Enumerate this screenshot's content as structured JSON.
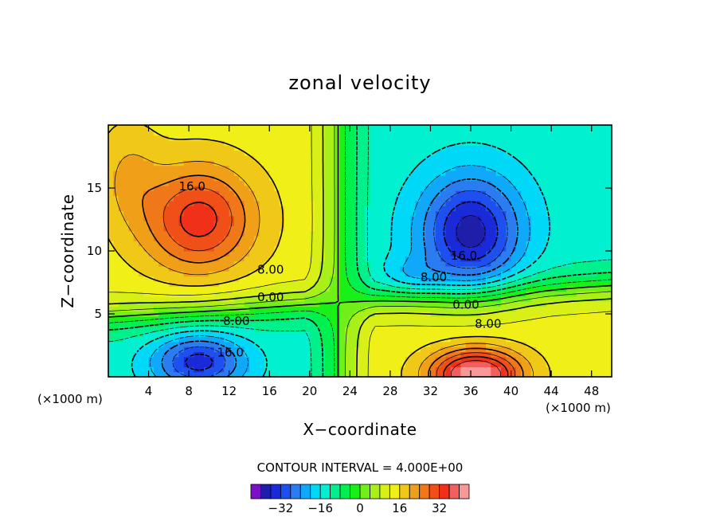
{
  "chart_data": {
    "type": "contour",
    "title": "zonal velocity",
    "xlabel": "X−coordinate",
    "ylabel": "Z−coordinate",
    "x_unit_left": "(×1000 m)",
    "x_unit_right": "(×1000 m)",
    "xlim": [
      0,
      50
    ],
    "ylim": [
      0,
      20
    ],
    "x_ticks": [
      4,
      8,
      12,
      16,
      20,
      24,
      28,
      32,
      36,
      40,
      44,
      48
    ],
    "y_ticks": [
      5,
      10,
      15
    ],
    "contour_interval_label": "CONTOUR INTERVAL = 4.000E+00",
    "contour_interval": 4,
    "negative_contours_dashed": true,
    "contour_labels": [
      {
        "text": "16.0",
        "x": 7.0,
        "y": 14.8
      },
      {
        "text": "8.00",
        "x": 14.8,
        "y": 8.2
      },
      {
        "text": "0.00",
        "x": 14.8,
        "y": 6.0
      },
      {
        "text": "8.00",
        "x": 11.4,
        "y": 4.1
      },
      {
        "text": "16.0",
        "x": 10.8,
        "y": 1.6
      },
      {
        "text": "16.0",
        "x": 34.0,
        "y": 9.3
      },
      {
        "text": "8.00",
        "x": 31.0,
        "y": 7.6
      },
      {
        "text": "0.00",
        "x": 34.2,
        "y": 5.4
      },
      {
        "text": "8.00",
        "x": 36.4,
        "y": 3.9
      }
    ],
    "features": [
      {
        "name": "max-upper-left",
        "x": 9,
        "y": 12.5,
        "value": 18
      },
      {
        "name": "min-upper-right",
        "x": 36,
        "y": 11.5,
        "value": -22
      },
      {
        "name": "min-lower-left",
        "x": 9,
        "y": 1.5,
        "value": -18
      },
      {
        "name": "max-lower-right",
        "x": 36,
        "y": 0.5,
        "value": 28
      }
    ],
    "colorbar": {
      "levels": [
        -40,
        -36,
        -32,
        -28,
        -24,
        -20,
        -16,
        -12,
        -8,
        -4,
        0,
        4,
        8,
        12,
        16,
        20,
        24,
        28,
        32,
        36,
        40
      ],
      "colors": [
        "#7a10c8",
        "#1e1ea8",
        "#1a2ad8",
        "#1e50f0",
        "#2a7cf0",
        "#10a8f8",
        "#00d8f8",
        "#00f0d0",
        "#00f08c",
        "#00f050",
        "#18f018",
        "#70f018",
        "#a8f018",
        "#d8f018",
        "#f0f018",
        "#f0c818",
        "#f0a018",
        "#f07818",
        "#f05018",
        "#f03018",
        "#f06060",
        "#f89898"
      ],
      "tick_labels": [
        "−32",
        "−16",
        "0",
        "16",
        "32"
      ],
      "tick_values": [
        -32,
        -16,
        0,
        16,
        32
      ]
    }
  }
}
